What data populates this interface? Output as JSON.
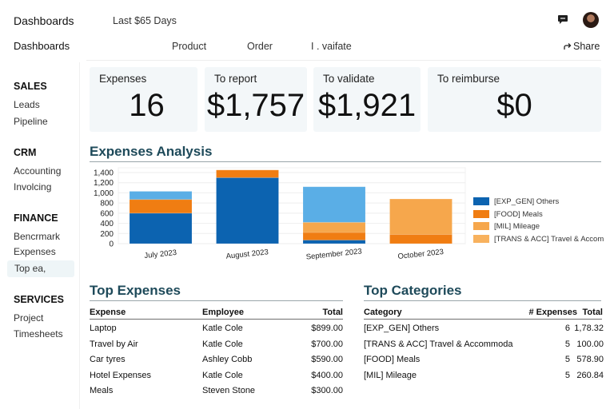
{
  "app": {
    "title": "Dashboards",
    "period": "Last $65 Days"
  },
  "subheader": {
    "breadcrumb": "Dashboards",
    "menu": [
      "Product",
      "Order",
      "I . vaifate"
    ],
    "share_label": "Share",
    "share_icon": "share-arrow-icon"
  },
  "topbar_icons": {
    "chat": "chat-icon",
    "avatar": "user-avatar"
  },
  "sidebar": {
    "sections": [
      {
        "title": "SALES",
        "items": [
          "Leads",
          "Pipeline"
        ]
      },
      {
        "title": "CRM",
        "items": [
          "Accounting",
          "Involcing"
        ]
      },
      {
        "title": "FINANCE",
        "items": [
          "Bencrmark",
          "Expenses",
          "Top ea,"
        ]
      },
      {
        "title": "SERVICES",
        "items": [
          "Project",
          "Timesheets"
        ]
      }
    ],
    "active_item": "Top ea,"
  },
  "kpis": [
    {
      "label": "Expenses",
      "value": "16"
    },
    {
      "label": "To report",
      "value": "$1,757"
    },
    {
      "label": "To validate",
      "value": "$1,921"
    },
    {
      "label": "To reimburse",
      "value": "$0"
    }
  ],
  "analysis": {
    "title": "Expenses Analysis"
  },
  "chart_data": {
    "type": "bar",
    "stacked": true,
    "categories": [
      "July 2023",
      "August 2023",
      "September 2023",
      "October 2023"
    ],
    "yticks": [
      "0",
      "200",
      "400",
      "600",
      "800",
      "1,000",
      "1,200",
      "1,400"
    ],
    "ylim": [
      0,
      1500
    ],
    "grid": true,
    "legend_position": "right",
    "series": [
      {
        "name": "[EXP_GEN] Others",
        "color": "#0c63b0",
        "values": [
          600,
          1300,
          70,
          0
        ]
      },
      {
        "name": "[FOOD] Meals",
        "color": "#f07d12",
        "values": [
          270,
          150,
          150,
          180
        ]
      },
      {
        "name": "[MIL] Mileage",
        "color": "#f6a74c",
        "values": [
          0,
          0,
          200,
          700
        ]
      },
      {
        "name": "[TRANS & ACC] Travel & Accom",
        "color": "#5aaee6",
        "values": [
          160,
          0,
          700,
          0
        ]
      }
    ]
  },
  "top_expenses": {
    "title": "Top Expenses",
    "columns": [
      "Expense",
      "Employee",
      "Total"
    ],
    "rows": [
      [
        "Laptop",
        "Katle Cole",
        "$899.00"
      ],
      [
        "Travel by Air",
        "Katle Cole",
        "$700.00"
      ],
      [
        "Car tyres",
        "Ashley Cobb",
        "$590.00"
      ],
      [
        "Hotel Expenses",
        "Katle Cole",
        "$400.00"
      ],
      [
        "Meals",
        "Steven Stone",
        "$300.00"
      ]
    ]
  },
  "top_categories": {
    "title": "Top Categories",
    "columns": [
      "Category",
      "# Expenses",
      "Total"
    ],
    "rows": [
      [
        "[EXP_GEN] Others",
        "6",
        "1,78.32"
      ],
      [
        "[TRANS & ACC] Travel & Accommoda",
        "5",
        "100.00"
      ],
      [
        "[FOOD] Meals",
        "5",
        "578.90"
      ],
      [
        "[MIL] Mileage",
        "5",
        "260.84"
      ]
    ]
  }
}
